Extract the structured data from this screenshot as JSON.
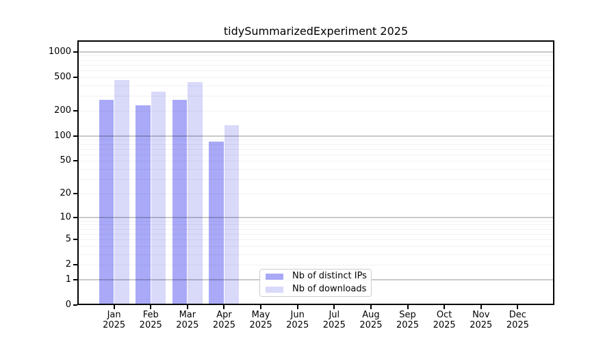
{
  "chart_data": {
    "type": "bar",
    "title": "tidySummarizedExperiment 2025",
    "categories": [
      "Jan 2025",
      "Feb 2025",
      "Mar 2025",
      "Apr 2025",
      "May 2025",
      "Jun 2025",
      "Jul 2025",
      "Aug 2025",
      "Sep 2025",
      "Oct 2025",
      "Nov 2025",
      "Dec 2025"
    ],
    "series": [
      {
        "name": "Nb of distinct IPs",
        "color": "#a9a9f8",
        "values": [
          268,
          233,
          268,
          85,
          0,
          0,
          0,
          0,
          0,
          0,
          0,
          0
        ]
      },
      {
        "name": "Nb of downloads",
        "color": "#d9d9fa",
        "values": [
          459,
          335,
          434,
          134,
          0,
          0,
          0,
          0,
          0,
          0,
          0,
          0
        ]
      }
    ],
    "yticks": [
      0,
      1,
      2,
      5,
      10,
      20,
      50,
      100,
      200,
      500,
      1000
    ],
    "yscale": "log1p",
    "ylim": [
      0,
      1000
    ],
    "grid": true,
    "grid_major_at": [
      1,
      10,
      100,
      1000
    ],
    "legend_position": "inside-lower-center",
    "background": "#ffffff",
    "frame_color": "#000000"
  }
}
